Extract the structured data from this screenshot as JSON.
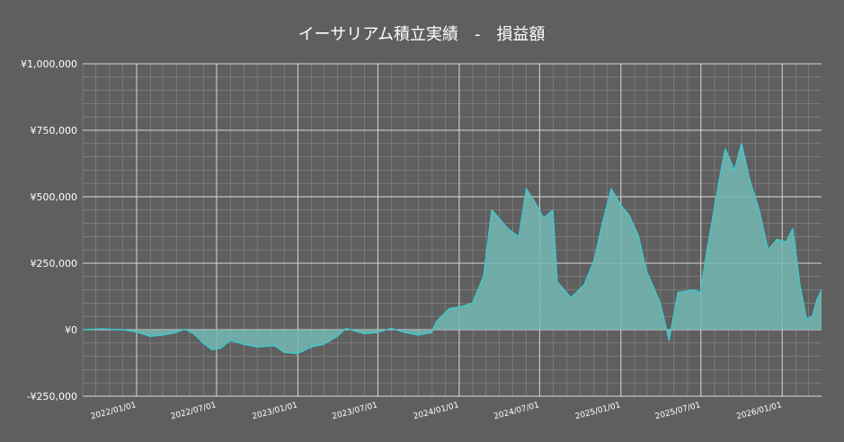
{
  "chart_data": {
    "type": "area",
    "title": "イーサリアム積立実績　-　損益額",
    "xlabel": "",
    "ylabel": "",
    "x_range": [
      "2021-09-01",
      "2026-03-31"
    ],
    "ylim": [
      -250000,
      1000000
    ],
    "yticks": [
      {
        "value": 1000000,
        "label": "¥1,000,000"
      },
      {
        "value": 750000,
        "label": "¥750,000"
      },
      {
        "value": 500000,
        "label": "¥500,000"
      },
      {
        "value": 250000,
        "label": "¥250,000"
      },
      {
        "value": 0,
        "label": "¥0"
      },
      {
        "value": -250000,
        "label": "-¥250,000"
      }
    ],
    "xticks": [
      {
        "date": "2022-01-01",
        "label": "2022/01/01"
      },
      {
        "date": "2022-07-01",
        "label": "2022/07/01"
      },
      {
        "date": "2023-01-01",
        "label": "2023/01/01"
      },
      {
        "date": "2023-07-01",
        "label": "2023/07/01"
      },
      {
        "date": "2024-01-01",
        "label": "2024/01/01"
      },
      {
        "date": "2024-07-01",
        "label": "2024/07/01"
      },
      {
        "date": "2025-01-01",
        "label": "2025/01/01"
      },
      {
        "date": "2025-07-01",
        "label": "2025/07/01"
      },
      {
        "date": "2026-01-01",
        "label": "2026/01/01"
      }
    ],
    "grid": true,
    "legend": "none",
    "line_color": "#3ec9cf",
    "fill_color": "#74b8b4",
    "series": [
      {
        "points": [
          [
            "2021-09-01",
            0
          ],
          [
            "2021-10-15",
            3000
          ],
          [
            "2021-12-01",
            0
          ],
          [
            "2022-01-01",
            -8000
          ],
          [
            "2022-02-01",
            -25000
          ],
          [
            "2022-03-01",
            -20000
          ],
          [
            "2022-04-01",
            -10000
          ],
          [
            "2022-04-20",
            2000
          ],
          [
            "2022-05-10",
            -15000
          ],
          [
            "2022-06-01",
            -50000
          ],
          [
            "2022-06-20",
            -75000
          ],
          [
            "2022-07-10",
            -70000
          ],
          [
            "2022-08-01",
            -40000
          ],
          [
            "2022-09-01",
            -55000
          ],
          [
            "2022-10-01",
            -65000
          ],
          [
            "2022-11-10",
            -60000
          ],
          [
            "2022-12-01",
            -85000
          ],
          [
            "2022-12-31",
            -90000
          ],
          [
            "2023-01-31",
            -65000
          ],
          [
            "2023-02-28",
            -55000
          ],
          [
            "2023-03-31",
            -25000
          ],
          [
            "2023-04-20",
            5000
          ],
          [
            "2023-05-31",
            -15000
          ],
          [
            "2023-06-30",
            -10000
          ],
          [
            "2023-07-31",
            5000
          ],
          [
            "2023-08-31",
            -10000
          ],
          [
            "2023-09-30",
            -20000
          ],
          [
            "2023-10-31",
            -10000
          ],
          [
            "2023-11-10",
            30000
          ],
          [
            "2023-12-10",
            80000
          ],
          [
            "2024-01-01",
            85000
          ],
          [
            "2024-01-31",
            100000
          ],
          [
            "2024-02-25",
            200000
          ],
          [
            "2024-03-15",
            450000
          ],
          [
            "2024-03-31",
            420000
          ],
          [
            "2024-04-20",
            380000
          ],
          [
            "2024-05-15",
            350000
          ],
          [
            "2024-06-01",
            530000
          ],
          [
            "2024-06-20",
            480000
          ],
          [
            "2024-07-10",
            420000
          ],
          [
            "2024-07-31",
            450000
          ],
          [
            "2024-08-10",
            180000
          ],
          [
            "2024-09-10",
            120000
          ],
          [
            "2024-10-10",
            170000
          ],
          [
            "2024-11-01",
            260000
          ],
          [
            "2024-11-20",
            400000
          ],
          [
            "2024-12-10",
            530000
          ],
          [
            "2024-12-31",
            470000
          ],
          [
            "2025-01-20",
            430000
          ],
          [
            "2025-02-10",
            350000
          ],
          [
            "2025-02-28",
            220000
          ],
          [
            "2025-03-31",
            100000
          ],
          [
            "2025-04-20",
            -40000
          ],
          [
            "2025-05-10",
            140000
          ],
          [
            "2025-06-15",
            150000
          ],
          [
            "2025-06-30",
            140000
          ],
          [
            "2025-07-15",
            300000
          ],
          [
            "2025-08-10",
            550000
          ],
          [
            "2025-08-25",
            680000
          ],
          [
            "2025-09-15",
            600000
          ],
          [
            "2025-10-01",
            700000
          ],
          [
            "2025-10-20",
            560000
          ],
          [
            "2025-11-10",
            450000
          ],
          [
            "2025-11-30",
            300000
          ],
          [
            "2025-12-20",
            340000
          ],
          [
            "2026-01-10",
            330000
          ],
          [
            "2026-01-25",
            380000
          ],
          [
            "2026-02-10",
            170000
          ],
          [
            "2026-02-25",
            40000
          ],
          [
            "2026-03-10",
            50000
          ],
          [
            "2026-03-20",
            110000
          ],
          [
            "2026-03-31",
            150000
          ]
        ]
      }
    ]
  }
}
